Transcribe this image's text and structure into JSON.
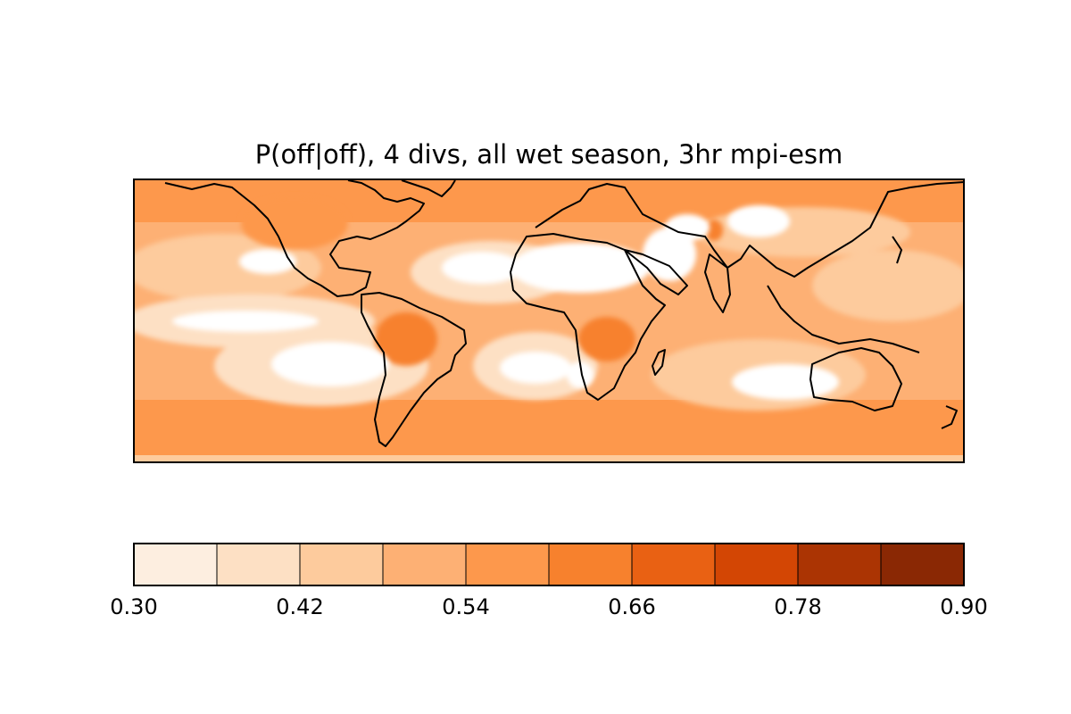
{
  "chart_data": {
    "type": "heatmap",
    "title": "P(off|off), 4 divs, all wet season, 3hr mpi-esm",
    "colorbar": {
      "boundaries": [
        0.3,
        0.36,
        0.42,
        0.48,
        0.54,
        0.6,
        0.66,
        0.72,
        0.78,
        0.84,
        0.9
      ],
      "colors": [
        "#fdeee0",
        "#fde0c4",
        "#fdcb9d",
        "#fdb074",
        "#fd984c",
        "#f7812d",
        "#e96113",
        "#d34604",
        "#ab3403",
        "#8a2804"
      ],
      "tick_values": [
        0.3,
        0.42,
        0.54,
        0.66,
        0.78,
        0.9
      ],
      "tick_labels": [
        "0.30",
        "0.42",
        "0.54",
        "0.66",
        "0.78",
        "0.90"
      ],
      "orientation": "horizontal",
      "placement": "bottom"
    },
    "map": {
      "projection": "plate carree",
      "lon_range": [
        -180,
        180
      ],
      "lat_range": [
        -60,
        60
      ],
      "coastlines": true,
      "below_min_color": "#ffffff"
    }
  }
}
